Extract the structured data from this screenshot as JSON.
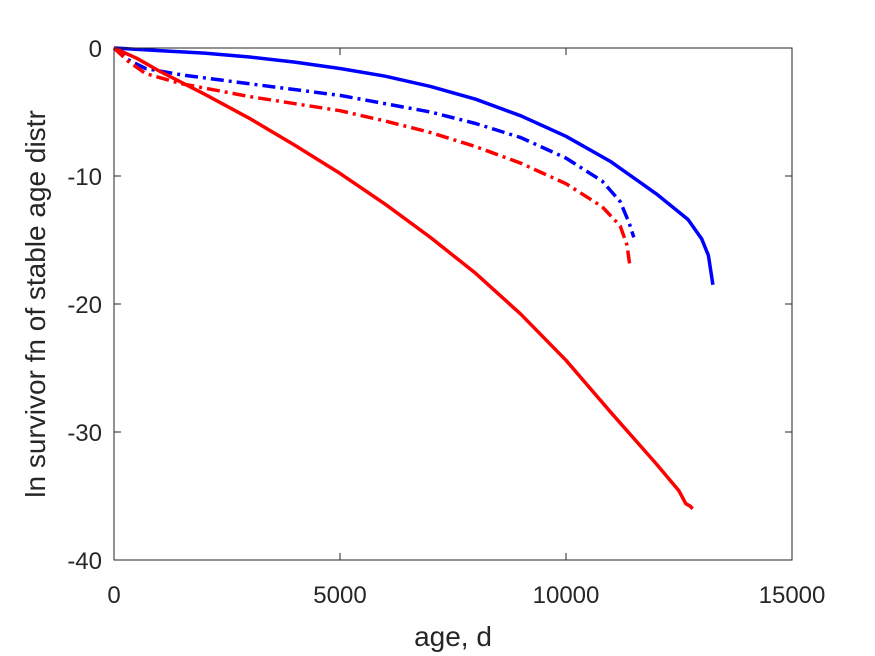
{
  "chart_data": {
    "type": "line",
    "xlabel": "age, d",
    "ylabel": "ln survivor fn of stable age distr",
    "xlim": [
      0,
      15000
    ],
    "ylim": [
      -40,
      0
    ],
    "xticks": [
      0,
      5000,
      10000,
      15000
    ],
    "yticks": [
      0,
      -10,
      -20,
      -30,
      -40
    ],
    "xtick_labels": [
      "0",
      "5000",
      "10000",
      "15000"
    ],
    "ytick_labels": [
      "0",
      "-10",
      "-20",
      "-30",
      "-40"
    ],
    "grid": false,
    "legend": "none",
    "series": [
      {
        "color": "#0000ff",
        "style": "solid",
        "points": [
          [
            0,
            0
          ],
          [
            1000,
            -0.2
          ],
          [
            2000,
            -0.4
          ],
          [
            3000,
            -0.7
          ],
          [
            4000,
            -1.1
          ],
          [
            5000,
            -1.6
          ],
          [
            6000,
            -2.2
          ],
          [
            7000,
            -3.0
          ],
          [
            8000,
            -4.0
          ],
          [
            9000,
            -5.3
          ],
          [
            10000,
            -6.9
          ],
          [
            11000,
            -8.9
          ],
          [
            12000,
            -11.4
          ],
          [
            12700,
            -13.4
          ],
          [
            13000,
            -14.9
          ],
          [
            13150,
            -16.2
          ],
          [
            13250,
            -18.5
          ]
        ]
      },
      {
        "color": "#0000ff",
        "style": "dashdot",
        "points": [
          [
            0,
            0
          ],
          [
            300,
            -0.9
          ],
          [
            700,
            -1.6
          ],
          [
            1500,
            -2.1
          ],
          [
            3000,
            -2.8
          ],
          [
            5000,
            -3.7
          ],
          [
            7000,
            -5.0
          ],
          [
            8000,
            -5.9
          ],
          [
            9000,
            -7.0
          ],
          [
            10000,
            -8.6
          ],
          [
            10800,
            -10.4
          ],
          [
            11200,
            -12.0
          ],
          [
            11400,
            -13.7
          ],
          [
            11500,
            -14.8
          ]
        ]
      },
      {
        "color": "#ff0000",
        "style": "dashdot",
        "points": [
          [
            0,
            0
          ],
          [
            300,
            -1.0
          ],
          [
            700,
            -2.0
          ],
          [
            1500,
            -2.8
          ],
          [
            3000,
            -3.8
          ],
          [
            5000,
            -4.9
          ],
          [
            6000,
            -5.7
          ],
          [
            7000,
            -6.6
          ],
          [
            8000,
            -7.7
          ],
          [
            9000,
            -9.0
          ],
          [
            10000,
            -10.6
          ],
          [
            10800,
            -12.4
          ],
          [
            11200,
            -13.9
          ],
          [
            11350,
            -15.4
          ],
          [
            11420,
            -17.2
          ]
        ]
      },
      {
        "color": "#ff0000",
        "style": "solid",
        "points": [
          [
            0,
            0
          ],
          [
            500,
            -0.8
          ],
          [
            1000,
            -1.8
          ],
          [
            2000,
            -3.6
          ],
          [
            3000,
            -5.5
          ],
          [
            4000,
            -7.6
          ],
          [
            5000,
            -9.8
          ],
          [
            6000,
            -12.2
          ],
          [
            7000,
            -14.8
          ],
          [
            8000,
            -17.6
          ],
          [
            9000,
            -20.8
          ],
          [
            10000,
            -24.4
          ],
          [
            11000,
            -28.5
          ],
          [
            12000,
            -32.5
          ],
          [
            12500,
            -34.6
          ],
          [
            12650,
            -35.6
          ],
          [
            12750,
            -35.8
          ],
          [
            12800,
            -36.0
          ]
        ]
      }
    ]
  }
}
